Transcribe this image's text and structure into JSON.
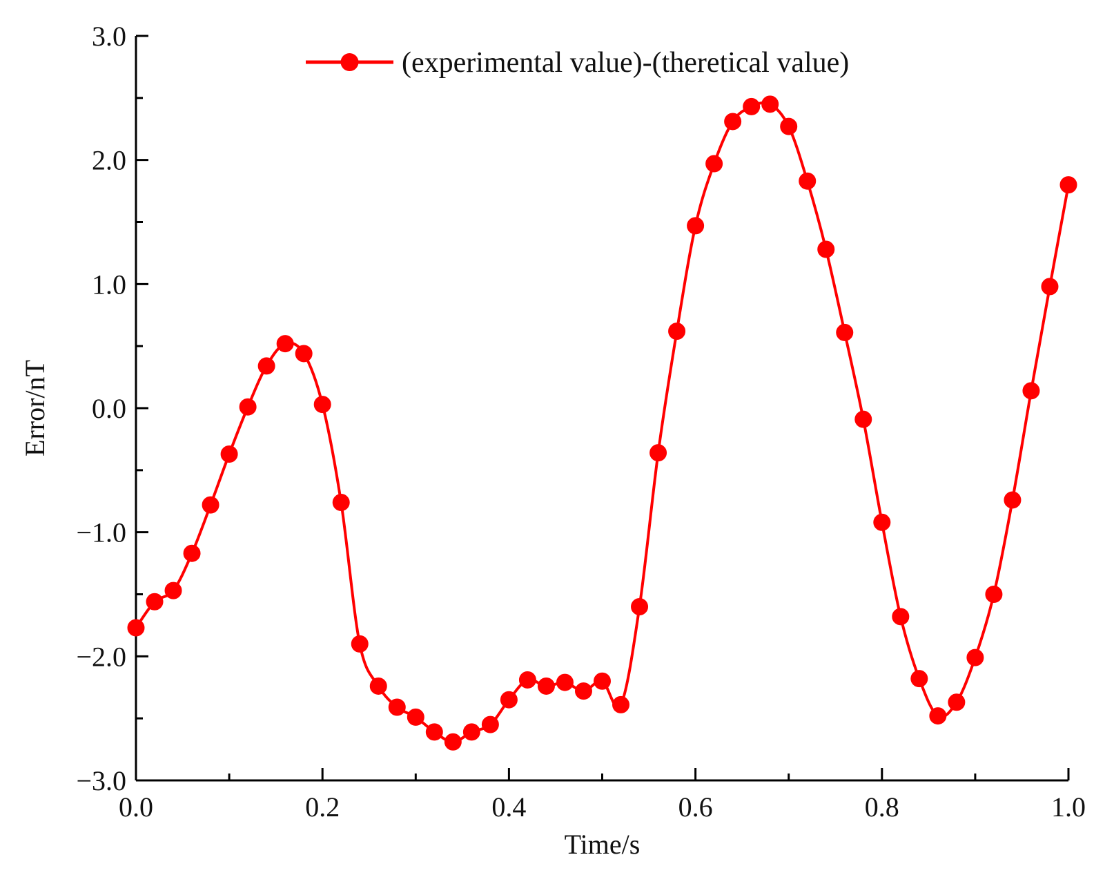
{
  "chart_data": {
    "type": "line",
    "title": "",
    "xlabel": "Time/s",
    "ylabel": "Error/nT",
    "xlim": [
      0.0,
      1.0
    ],
    "ylim": [
      -3.0,
      3.0
    ],
    "x_ticks": [
      0.0,
      0.2,
      0.4,
      0.6,
      0.8,
      1.0
    ],
    "x_tick_labels": [
      "0.0",
      "0.2",
      "0.4",
      "0.6",
      "0.8",
      "1.0"
    ],
    "y_ticks": [
      -3.0,
      -2.0,
      -1.0,
      0.0,
      1.0,
      2.0,
      3.0
    ],
    "y_tick_labels": [
      "−3.0",
      "−2.0",
      "−1.0",
      "0.0",
      "1.0",
      "2.0",
      "3.0"
    ],
    "grid": false,
    "legend_position": "top-right",
    "series": [
      {
        "name": "(experimental value)-(theretical value)",
        "color": "#ff0000",
        "marker": "circle",
        "x": [
          0.0,
          0.02,
          0.04,
          0.06,
          0.08,
          0.1,
          0.12,
          0.14,
          0.16,
          0.18,
          0.2,
          0.22,
          0.24,
          0.26,
          0.28,
          0.3,
          0.32,
          0.34,
          0.36,
          0.38,
          0.4,
          0.42,
          0.44,
          0.46,
          0.48,
          0.5,
          0.52,
          0.54,
          0.56,
          0.58,
          0.6,
          0.62,
          0.64,
          0.66,
          0.68,
          0.7,
          0.72,
          0.74,
          0.76,
          0.78,
          0.8,
          0.82,
          0.84,
          0.86,
          0.88,
          0.9,
          0.92,
          0.94,
          0.96,
          0.98,
          1.0
        ],
        "values": [
          -1.77,
          -1.56,
          -1.47,
          -1.17,
          -0.78,
          -0.37,
          0.01,
          0.34,
          0.52,
          0.44,
          0.03,
          -0.76,
          -1.9,
          -2.24,
          -2.41,
          -2.49,
          -2.61,
          -2.69,
          -2.61,
          -2.55,
          -2.35,
          -2.19,
          -2.24,
          -2.21,
          -2.28,
          -2.2,
          -2.39,
          -1.6,
          -0.36,
          0.62,
          1.47,
          1.97,
          2.31,
          2.43,
          2.45,
          2.27,
          1.83,
          1.28,
          0.61,
          -0.09,
          -0.92,
          -1.68,
          -2.18,
          -2.48,
          -2.37,
          -2.01,
          -1.5,
          -0.74,
          0.14,
          0.98,
          1.8
        ]
      }
    ]
  }
}
